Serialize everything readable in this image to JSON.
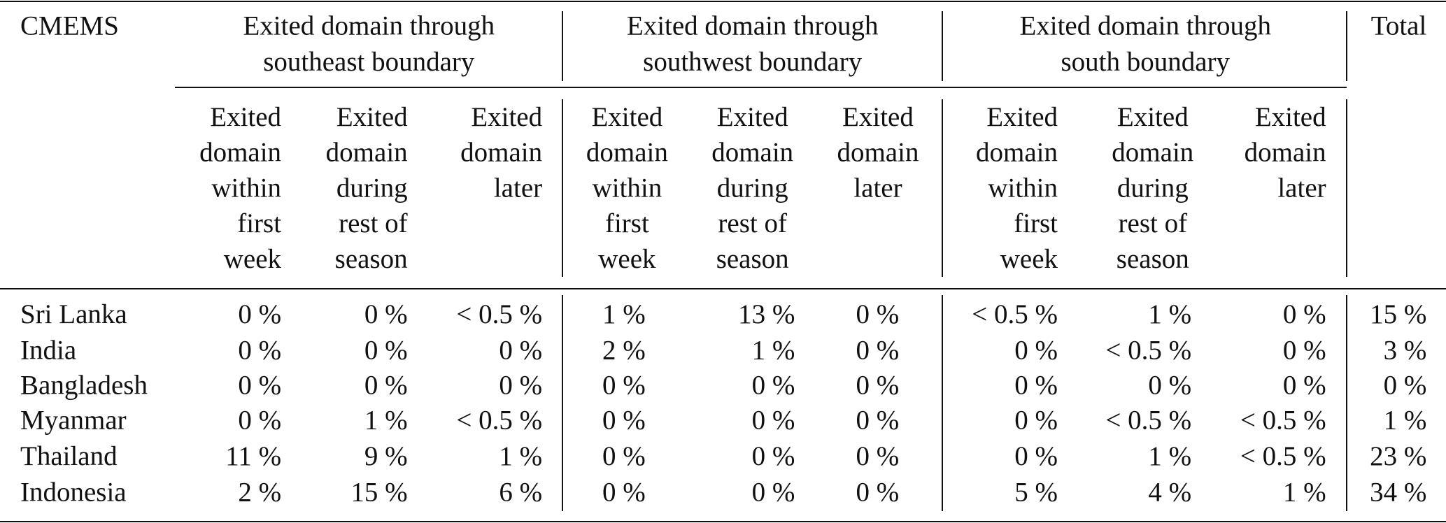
{
  "header": {
    "corner": "CMEMS",
    "groups": [
      {
        "lines": [
          "Exited domain through",
          "southeast boundary"
        ]
      },
      {
        "lines": [
          "Exited domain through",
          "southwest boundary"
        ]
      },
      {
        "lines": [
          "Exited domain through",
          "south boundary"
        ]
      }
    ],
    "total": "Total",
    "sub_headers": [
      [
        "Exited",
        "domain",
        "within",
        "first",
        "week"
      ],
      [
        "Exited",
        "domain",
        "during",
        "rest of",
        "season"
      ],
      [
        "Exited",
        "domain",
        "later"
      ],
      [
        "Exited",
        "domain",
        "within",
        "first",
        "week"
      ],
      [
        "Exited",
        "domain",
        "during",
        "rest of",
        "season"
      ],
      [
        "Exited",
        "domain",
        "later"
      ],
      [
        "Exited",
        "domain",
        "within",
        "first",
        "week"
      ],
      [
        "Exited",
        "domain",
        "during",
        "rest of",
        "season"
      ],
      [
        "Exited",
        "domain",
        "later"
      ]
    ]
  },
  "rows": [
    {
      "country": "Sri Lanka",
      "values": [
        "0 %",
        "0 %",
        "< 0.5 %",
        "1 %",
        "13 %",
        "0 %",
        "< 0.5 %",
        "1 %",
        "0 %",
        "15 %"
      ]
    },
    {
      "country": "India",
      "values": [
        "0 %",
        "0 %",
        "0 %",
        "2 %",
        "1 %",
        "0 %",
        "0 %",
        "< 0.5 %",
        "0 %",
        "3 %"
      ]
    },
    {
      "country": "Bangladesh",
      "values": [
        "0 %",
        "0 %",
        "0 %",
        "0 %",
        "0 %",
        "0 %",
        "0 %",
        "0 %",
        "0 %",
        "0 %"
      ]
    },
    {
      "country": "Myanmar",
      "values": [
        "0 %",
        "1 %",
        "< 0.5 %",
        "0 %",
        "0 %",
        "0 %",
        "0 %",
        "< 0.5 %",
        "< 0.5 %",
        "1 %"
      ]
    },
    {
      "country": "Thailand",
      "values": [
        "11 %",
        "9 %",
        "1 %",
        "0 %",
        "0 %",
        "0 %",
        "0 %",
        "1 %",
        "< 0.5 %",
        "23 %"
      ]
    },
    {
      "country": "Indonesia",
      "values": [
        "2 %",
        "15 %",
        "6 %",
        "0 %",
        "0 %",
        "0 %",
        "5 %",
        "4 %",
        "1 %",
        "34 %"
      ]
    }
  ]
}
